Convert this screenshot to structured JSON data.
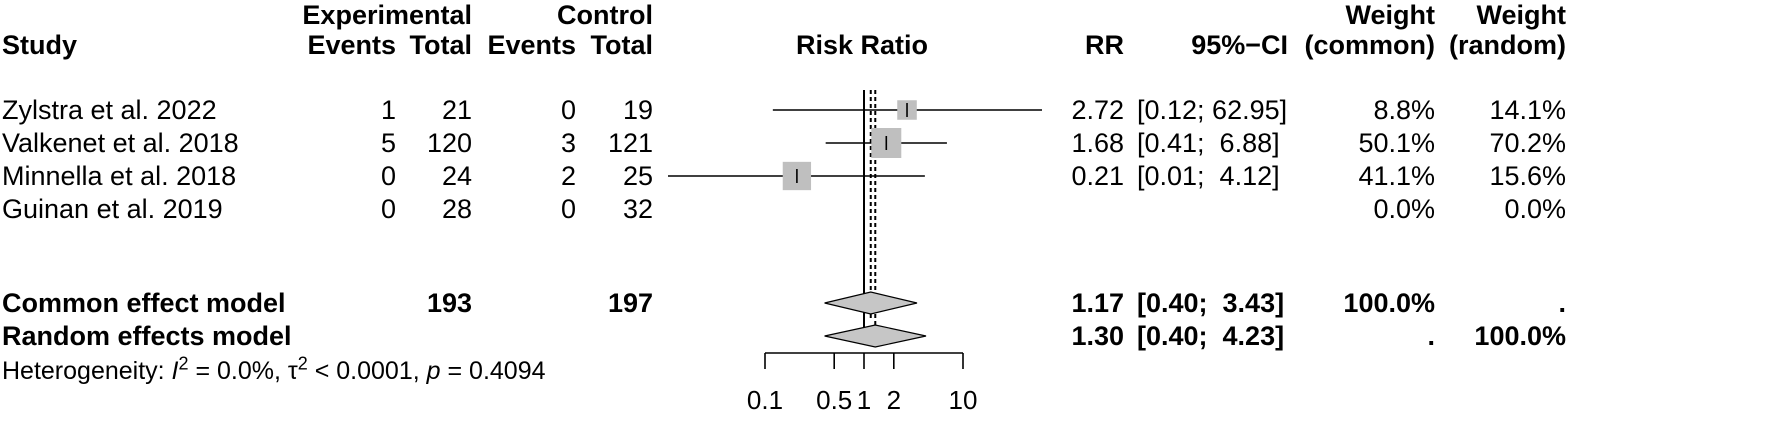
{
  "header": {
    "experimental": "Experimental",
    "control": "Control",
    "study": "Study",
    "events": "Events",
    "total": "Total",
    "risk_ratio": "Risk Ratio",
    "rr": "RR",
    "ci": "95%−CI",
    "weight": "Weight",
    "weight_common": "(common)",
    "weight_random": "(random)"
  },
  "studies": [
    {
      "study": "Zylstra et al. 2022",
      "exp_events": "1",
      "exp_total": "21",
      "ctrl_events": "0",
      "ctrl_total": "19",
      "rr": "2.72",
      "ci": "[0.12; 62.95]",
      "w_common": "8.8%",
      "w_random": "14.1%"
    },
    {
      "study": "Valkenet et al. 2018",
      "exp_events": "5",
      "exp_total": "120",
      "ctrl_events": "3",
      "ctrl_total": "121",
      "rr": "1.68",
      "ci": "[0.41;  6.88]",
      "w_common": "50.1%",
      "w_random": "70.2%"
    },
    {
      "study": "Minnella et al. 2018",
      "exp_events": "0",
      "exp_total": "24",
      "ctrl_events": "2",
      "ctrl_total": "25",
      "rr": "0.21",
      "ci": "[0.01;  4.12]",
      "w_common": "41.1%",
      "w_random": "15.6%"
    },
    {
      "study": "Guinan et al. 2019",
      "exp_events": "0",
      "exp_total": "28",
      "ctrl_events": "0",
      "ctrl_total": "32",
      "rr": "",
      "ci": "",
      "w_common": "0.0%",
      "w_random": "0.0%"
    }
  ],
  "pooled": [
    {
      "label": "Common effect model",
      "exp_total": "193",
      "ctrl_total": "197",
      "rr": "1.17",
      "ci": "[0.40;  3.43]",
      "w_common": "100.0%",
      "w_random": "."
    },
    {
      "label": "Random effects model",
      "exp_total": "",
      "ctrl_total": "",
      "rr": "1.30",
      "ci": "[0.40;  4.23]",
      "w_common": ".",
      "w_random": "100.0%"
    }
  ],
  "heterogeneity": {
    "prefix": "Heterogeneity: ",
    "i": "I",
    "i_sup": "2",
    "i_val": " = 0.0%, τ",
    "tau_sup": "2",
    "tau_val": " < 0.0001, ",
    "p": "p",
    "p_val": " = 0.4094"
  },
  "colors": {
    "square": "#bfbfbf",
    "diamond": "#c6c6c6",
    "line": "#000000"
  },
  "chart_data": {
    "type": "forest",
    "title": "Risk Ratio",
    "scale": "log",
    "xlim": [
      0.1,
      10
    ],
    "xticks": [
      0.1,
      0.5,
      1,
      2,
      10
    ],
    "xtick_labels": [
      "0.1",
      "0.5",
      "1",
      "2",
      "10"
    ],
    "null_value": 1,
    "studies": [
      {
        "name": "Zylstra et al. 2022",
        "rr": 2.72,
        "lower": 0.12,
        "upper": 62.95,
        "weight_common": 8.8
      },
      {
        "name": "Valkenet et al. 2018",
        "rr": 1.68,
        "lower": 0.41,
        "upper": 6.88,
        "weight_common": 50.1
      },
      {
        "name": "Minnella et al. 2018",
        "rr": 0.21,
        "lower": 0.01,
        "upper": 4.12,
        "weight_common": 41.1
      }
    ],
    "common": {
      "rr": 1.17,
      "lower": 0.4,
      "upper": 3.43
    },
    "random": {
      "rr": 1.3,
      "lower": 0.4,
      "upper": 4.23
    }
  }
}
